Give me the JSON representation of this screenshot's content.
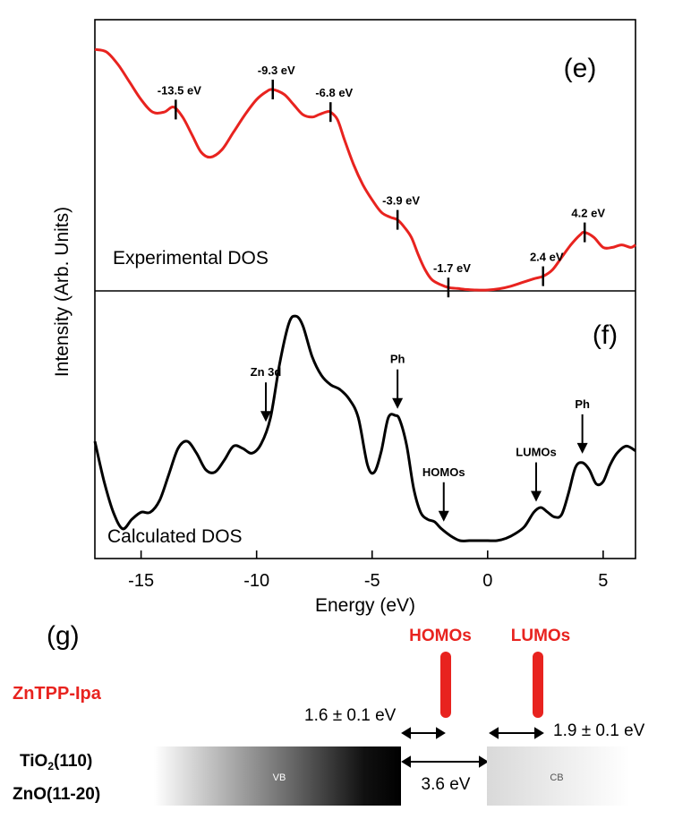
{
  "chart_data": [
    {
      "type": "line",
      "panel_label": "(e)",
      "annotation": "Experimental DOS",
      "ylabel": "Intensity (Arb. Units)",
      "xlim": [
        -17,
        6.4
      ],
      "color": "#e8231f",
      "series": [
        {
          "x": [
            -17,
            -16.5,
            -16,
            -15.5,
            -15,
            -14.5,
            -14,
            -13.6,
            -13.2,
            -12.8,
            -12.4,
            -12.0,
            -11.5,
            -11,
            -10.5,
            -10,
            -9.6,
            -9.3,
            -8.8,
            -8.4,
            -8.0,
            -7.6,
            -7.3,
            -7.0,
            -6.8,
            -6.5,
            -6.2,
            -5.8,
            -5.4,
            -5.0,
            -4.6,
            -4.2,
            -3.9,
            -3.6,
            -3.3,
            -3.0,
            -2.7,
            -2.4,
            -2.0,
            -1.7,
            -1.3,
            -1.0,
            -0.5,
            0,
            0.5,
            1.0,
            1.5,
            2.0,
            2.4,
            2.8,
            3.2,
            3.6,
            4.0,
            4.2,
            4.6,
            5.0,
            5.4,
            5.8,
            6.2,
            6.4
          ],
          "y": [
            96,
            95,
            90,
            83,
            76,
            71,
            71,
            73,
            69,
            62,
            55,
            53,
            56,
            63,
            70,
            76,
            79,
            80,
            78,
            74,
            70,
            69,
            70,
            71,
            71,
            68,
            60,
            50,
            42,
            36,
            31,
            29,
            28,
            25,
            21,
            14,
            8,
            4,
            2,
            1,
            0.6,
            0.3,
            0,
            0,
            0.5,
            1.5,
            3,
            4.5,
            5.5,
            8,
            13,
            18,
            22,
            23,
            21,
            17,
            17,
            18,
            17,
            18
          ]
        }
      ],
      "peaks": [
        {
          "x": -13.5,
          "label": "-13.5 eV"
        },
        {
          "x": -9.3,
          "label": "-9.3 eV"
        },
        {
          "x": -6.8,
          "label": "-6.8 eV"
        },
        {
          "x": -3.9,
          "label": "-3.9 eV"
        },
        {
          "x": -1.7,
          "label": "-1.7 eV"
        },
        {
          "x": 2.4,
          "label": "2.4 eV"
        },
        {
          "x": 4.2,
          "label": "4.2 eV"
        }
      ]
    },
    {
      "type": "line",
      "panel_label": "(f)",
      "annotation": "Calculated DOS",
      "xlabel": "Energy (eV)",
      "xlim": [
        -17,
        6.4
      ],
      "xticks": [
        -15,
        -10,
        -5,
        0,
        5
      ],
      "color": "#000000",
      "series": [
        {
          "x": [
            -17,
            -16.6,
            -16.2,
            -15.8,
            -15.4,
            -15.0,
            -14.6,
            -14.2,
            -13.8,
            -13.4,
            -13.0,
            -12.6,
            -12.2,
            -11.8,
            -11.4,
            -11.0,
            -10.6,
            -10.2,
            -9.8,
            -9.4,
            -9.0,
            -8.6,
            -8.3,
            -8.0,
            -7.6,
            -7.2,
            -6.8,
            -6.4,
            -6.0,
            -5.6,
            -5.2,
            -4.9,
            -4.6,
            -4.3,
            -4.0,
            -3.8,
            -3.5,
            -3.2,
            -2.9,
            -2.6,
            -2.3,
            -2.0,
            -1.6,
            -1.2,
            -0.8,
            -0.4,
            0,
            0.4,
            0.8,
            1.2,
            1.6,
            2.0,
            2.3,
            2.6,
            2.9,
            3.2,
            3.5,
            3.8,
            4.1,
            4.4,
            4.7,
            5.0,
            5.3,
            5.6,
            6.0,
            6.4
          ],
          "y": [
            42,
            25,
            12,
            5,
            9,
            12,
            12,
            17,
            28,
            39,
            42,
            37,
            30,
            29,
            34,
            40,
            39,
            37,
            41,
            52,
            75,
            92,
            95,
            91,
            78,
            70,
            66,
            64,
            60,
            52,
            32,
            29,
            38,
            52,
            53,
            51,
            40,
            22,
            12,
            9,
            8,
            5,
            2,
            0,
            0,
            0,
            0,
            0,
            1,
            3,
            6,
            12,
            14,
            12,
            10,
            11,
            20,
            31,
            33,
            30,
            24,
            25,
            32,
            37,
            40,
            38
          ]
        }
      ],
      "arrows": [
        {
          "x": -9.6,
          "label": "Zn 3d"
        },
        {
          "x": -3.9,
          "label": "Ph"
        },
        {
          "x": -1.9,
          "label": "HOMOs"
        },
        {
          "x": 2.1,
          "label": "LUMOs"
        },
        {
          "x": 4.1,
          "label": "Ph"
        }
      ]
    }
  ],
  "diagram": {
    "panel_label": "(g)",
    "molecule_label": "ZnTPP-Ipa",
    "homo_label": "HOMOs",
    "lumo_label": "LUMOs",
    "homo_gap_label": "1.6 ± 0.1 eV",
    "lumo_gap_label": "1.9 ± 0.1 eV",
    "band_gap_label": "3.6 eV",
    "substrate_tio2_main": "TiO",
    "substrate_tio2_sub": "2",
    "substrate_tio2_rest": "(110)",
    "substrate_zno": "ZnO(11-20)",
    "vb_label": "VB",
    "cb_label": "CB",
    "highlight_color": "#e8231f"
  }
}
